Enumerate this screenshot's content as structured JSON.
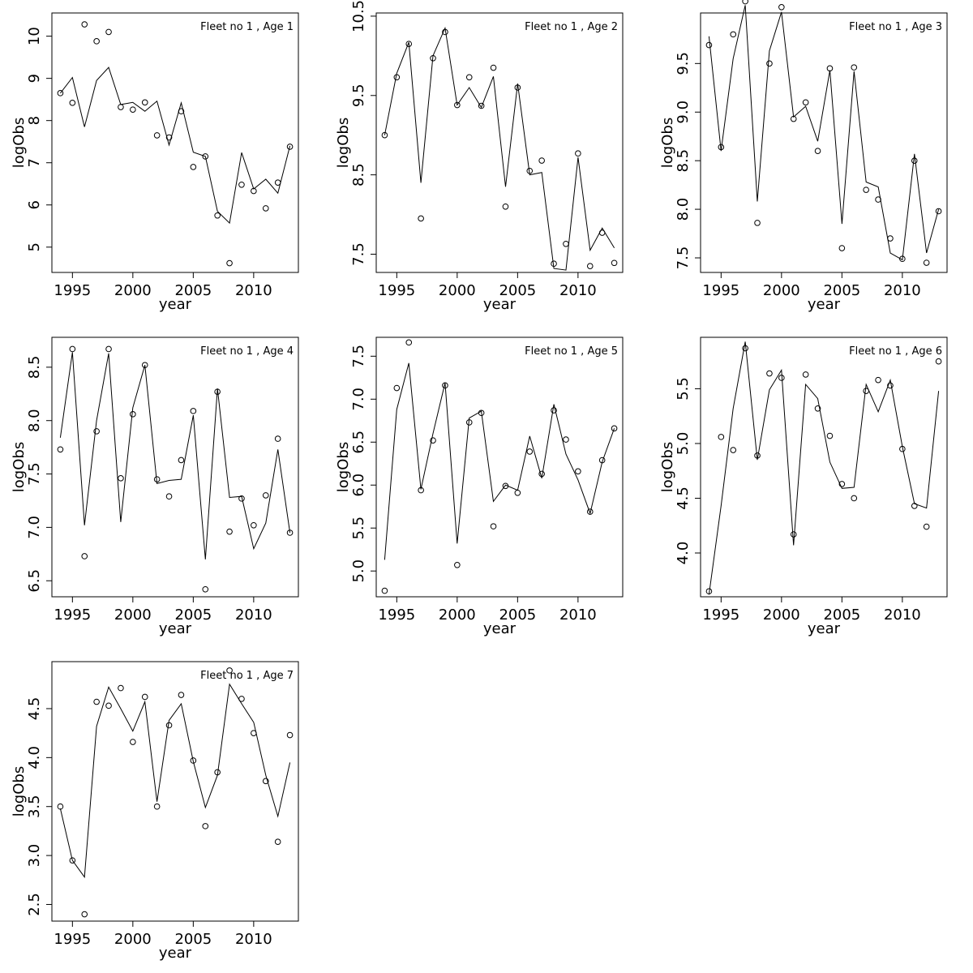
{
  "chart_data": [
    {
      "type": "scatter+line",
      "title": "Fleet no 1 , Age 1",
      "xlabel": "year",
      "ylabel": "logObs",
      "xlim": [
        1993.3,
        2013.7
      ],
      "ylim": [
        4.4,
        10.55
      ],
      "xticks": [
        1995,
        2000,
        2005,
        2010
      ],
      "yticks": [
        5,
        6,
        7,
        8,
        9,
        10
      ],
      "x": [
        1994,
        1995,
        1996,
        1997,
        1998,
        1999,
        2000,
        2001,
        2002,
        2003,
        2004,
        2005,
        2006,
        2007,
        2008,
        2009,
        2010,
        2011,
        2012,
        2013
      ],
      "observed": [
        8.65,
        8.42,
        10.28,
        9.88,
        10.1,
        8.32,
        8.26,
        8.43,
        7.65,
        7.6,
        8.22,
        6.9,
        7.15,
        5.75,
        4.62,
        6.48,
        6.33,
        5.92,
        6.53,
        7.38
      ],
      "fitted": [
        8.65,
        9.02,
        7.85,
        8.95,
        9.26,
        8.38,
        8.43,
        8.22,
        8.46,
        7.42,
        8.42,
        7.25,
        7.15,
        5.85,
        5.57,
        7.24,
        6.38,
        6.61,
        6.28,
        7.4
      ]
    },
    {
      "type": "scatter+line",
      "title": "Fleet no 1 , Age 2",
      "xlabel": "year",
      "ylabel": "logObs",
      "xlim": [
        1993.3,
        2013.7
      ],
      "ylim": [
        7.27,
        10.54
      ],
      "xticks": [
        1995,
        2000,
        2005,
        2010
      ],
      "yticks": [
        7.5,
        8.5,
        9.5,
        10.5
      ],
      "x": [
        1994,
        1995,
        1996,
        1997,
        1998,
        1999,
        2000,
        2001,
        2002,
        2003,
        2004,
        2005,
        2006,
        2007,
        2008,
        2009,
        2010,
        2011,
        2012,
        2013
      ],
      "observed": [
        9.0,
        9.73,
        10.15,
        7.95,
        9.97,
        10.3,
        9.38,
        9.73,
        9.37,
        9.85,
        8.1,
        9.6,
        8.55,
        8.68,
        7.38,
        7.63,
        8.77,
        7.35,
        7.77,
        7.39
      ],
      "fitted": [
        9.0,
        9.78,
        10.17,
        8.4,
        10.0,
        10.35,
        9.38,
        9.6,
        9.35,
        9.74,
        8.35,
        9.65,
        8.5,
        8.53,
        7.32,
        7.3,
        8.72,
        7.55,
        7.83,
        7.58
      ]
    },
    {
      "type": "scatter+line",
      "title": "Fleet no 1 , Age 3",
      "xlabel": "year",
      "ylabel": "logObs",
      "xlim": [
        1993.3,
        2013.7
      ],
      "ylim": [
        7.35,
        10.02
      ],
      "xticks": [
        1995,
        2000,
        2005,
        2010
      ],
      "yticks": [
        7.5,
        8.0,
        8.5,
        9.0,
        9.5
      ],
      "x": [
        1994,
        1995,
        1996,
        1997,
        1998,
        1999,
        2000,
        2001,
        2002,
        2003,
        2004,
        2005,
        2006,
        2007,
        2008,
        2009,
        2010,
        2011,
        2012,
        2013
      ],
      "observed": [
        9.69,
        8.64,
        9.8,
        10.14,
        7.86,
        9.5,
        10.08,
        8.93,
        9.1,
        8.6,
        9.45,
        7.6,
        9.46,
        8.2,
        8.1,
        7.7,
        7.49,
        8.5,
        7.45,
        7.98
      ],
      "fitted": [
        9.78,
        8.6,
        9.55,
        10.1,
        8.08,
        9.63,
        10.03,
        8.95,
        9.06,
        8.7,
        9.43,
        7.85,
        9.42,
        8.28,
        8.23,
        7.55,
        7.48,
        8.57,
        7.55,
        8.0
      ]
    },
    {
      "type": "scatter+line",
      "title": "Fleet no 1 , Age 4",
      "xlabel": "year",
      "ylabel": "logObs",
      "xlim": [
        1993.3,
        2013.7
      ],
      "ylim": [
        6.35,
        8.78
      ],
      "xticks": [
        1995,
        2000,
        2005,
        2010
      ],
      "yticks": [
        6.5,
        7.0,
        7.5,
        8.0,
        8.5
      ],
      "x": [
        1994,
        1995,
        1996,
        1997,
        1998,
        1999,
        2000,
        2001,
        2002,
        2003,
        2004,
        2005,
        2006,
        2007,
        2008,
        2009,
        2010,
        2011,
        2012,
        2013
      ],
      "observed": [
        7.73,
        8.67,
        6.73,
        7.9,
        8.67,
        7.46,
        8.06,
        8.52,
        7.45,
        7.29,
        7.63,
        8.09,
        6.42,
        8.27,
        6.96,
        7.27,
        7.02,
        7.3,
        7.83,
        6.95
      ],
      "fitted": [
        7.84,
        8.64,
        7.02,
        8.0,
        8.63,
        7.05,
        8.12,
        8.52,
        7.41,
        7.44,
        7.45,
        8.05,
        6.7,
        8.3,
        7.28,
        7.29,
        6.8,
        7.04,
        7.73,
        6.95
      ]
    },
    {
      "type": "scatter+line",
      "title": "Fleet no 1 , Age 5",
      "xlabel": "year",
      "ylabel": "logObs",
      "xlim": [
        1993.3,
        2013.7
      ],
      "ylim": [
        4.7,
        7.72
      ],
      "xticks": [
        1995,
        2000,
        2005,
        2010
      ],
      "yticks": [
        5.0,
        5.5,
        6.0,
        6.5,
        7.0,
        7.5
      ],
      "x": [
        1994,
        1995,
        1996,
        1997,
        1998,
        1999,
        2000,
        2001,
        2002,
        2003,
        2004,
        2005,
        2006,
        2007,
        2008,
        2009,
        2010,
        2011,
        2012,
        2013
      ],
      "observed": [
        4.77,
        7.13,
        7.66,
        5.94,
        6.52,
        7.16,
        5.07,
        6.73,
        6.84,
        5.52,
        5.99,
        5.91,
        6.39,
        6.13,
        6.87,
        6.53,
        6.16,
        5.69,
        6.29,
        6.66
      ],
      "fitted": [
        5.13,
        6.88,
        7.42,
        5.95,
        6.6,
        7.19,
        5.32,
        6.78,
        6.86,
        5.81,
        6.0,
        5.94,
        6.57,
        6.08,
        6.94,
        6.36,
        6.06,
        5.67,
        6.27,
        6.66
      ]
    },
    {
      "type": "scatter+line",
      "title": "Fleet no 1 , Age 6",
      "xlabel": "year",
      "ylabel": "logObs",
      "xlim": [
        1993.3,
        2013.7
      ],
      "ylim": [
        3.6,
        5.97
      ],
      "xticks": [
        1995,
        2000,
        2005,
        2010
      ],
      "yticks": [
        4.0,
        4.5,
        5.0,
        5.5
      ],
      "x": [
        1994,
        1995,
        1996,
        1997,
        1998,
        1999,
        2000,
        2001,
        2002,
        2003,
        2004,
        2005,
        2006,
        2007,
        2008,
        2009,
        2010,
        2011,
        2012,
        2013
      ],
      "observed": [
        3.65,
        5.06,
        4.94,
        5.87,
        4.89,
        5.64,
        5.6,
        4.17,
        5.63,
        5.32,
        5.07,
        4.63,
        4.5,
        5.48,
        5.58,
        5.53,
        4.95,
        4.43,
        4.24,
        5.75
      ],
      "fitted": [
        3.62,
        4.43,
        5.32,
        5.93,
        4.85,
        5.49,
        5.67,
        4.07,
        5.54,
        5.41,
        4.83,
        4.59,
        4.6,
        5.54,
        5.29,
        5.58,
        4.97,
        4.45,
        4.41,
        5.48
      ]
    },
    {
      "type": "scatter+line",
      "title": "Fleet no 1 , Age 7",
      "xlabel": "year",
      "ylabel": "logObs",
      "xlim": [
        1993.3,
        2013.7
      ],
      "ylim": [
        2.33,
        4.98
      ],
      "xticks": [
        1995,
        2000,
        2005,
        2010
      ],
      "yticks": [
        2.5,
        3.0,
        3.5,
        4.0,
        4.5
      ],
      "x": [
        1994,
        1995,
        1996,
        1997,
        1998,
        1999,
        2000,
        2001,
        2002,
        2003,
        2004,
        2005,
        2006,
        2007,
        2008,
        2009,
        2010,
        2011,
        2012,
        2013
      ],
      "observed": [
        3.5,
        2.95,
        2.4,
        4.57,
        4.53,
        4.71,
        4.16,
        4.62,
        3.5,
        4.33,
        4.64,
        3.97,
        3.3,
        3.85,
        4.89,
        4.6,
        4.25,
        3.76,
        3.14,
        4.23
      ],
      "fitted": [
        3.48,
        2.95,
        2.78,
        4.32,
        4.72,
        4.5,
        4.27,
        4.57,
        3.55,
        4.38,
        4.55,
        3.96,
        3.49,
        3.82,
        4.75,
        4.55,
        4.36,
        3.82,
        3.4,
        3.95
      ]
    }
  ]
}
